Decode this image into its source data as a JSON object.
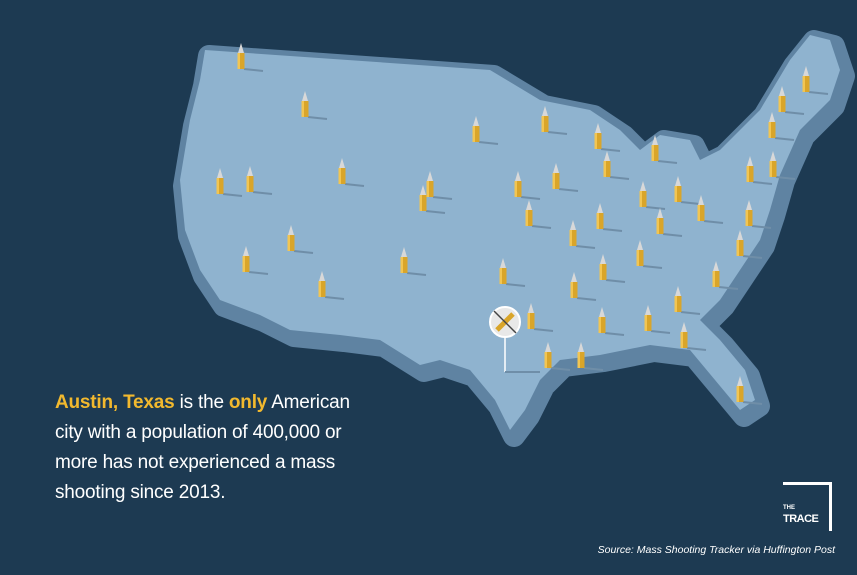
{
  "headline": {
    "highlight1": "Austin, Texas",
    "text1": " is the ",
    "highlight2": "only",
    "text2": " American city with a population of 400,000 or more has not experienced a mass shooting since 2013."
  },
  "logo": {
    "small": "THE",
    "big": "TRACE"
  },
  "source": "Source:  Mass Shooting Tracker via Huffington Post"
}
